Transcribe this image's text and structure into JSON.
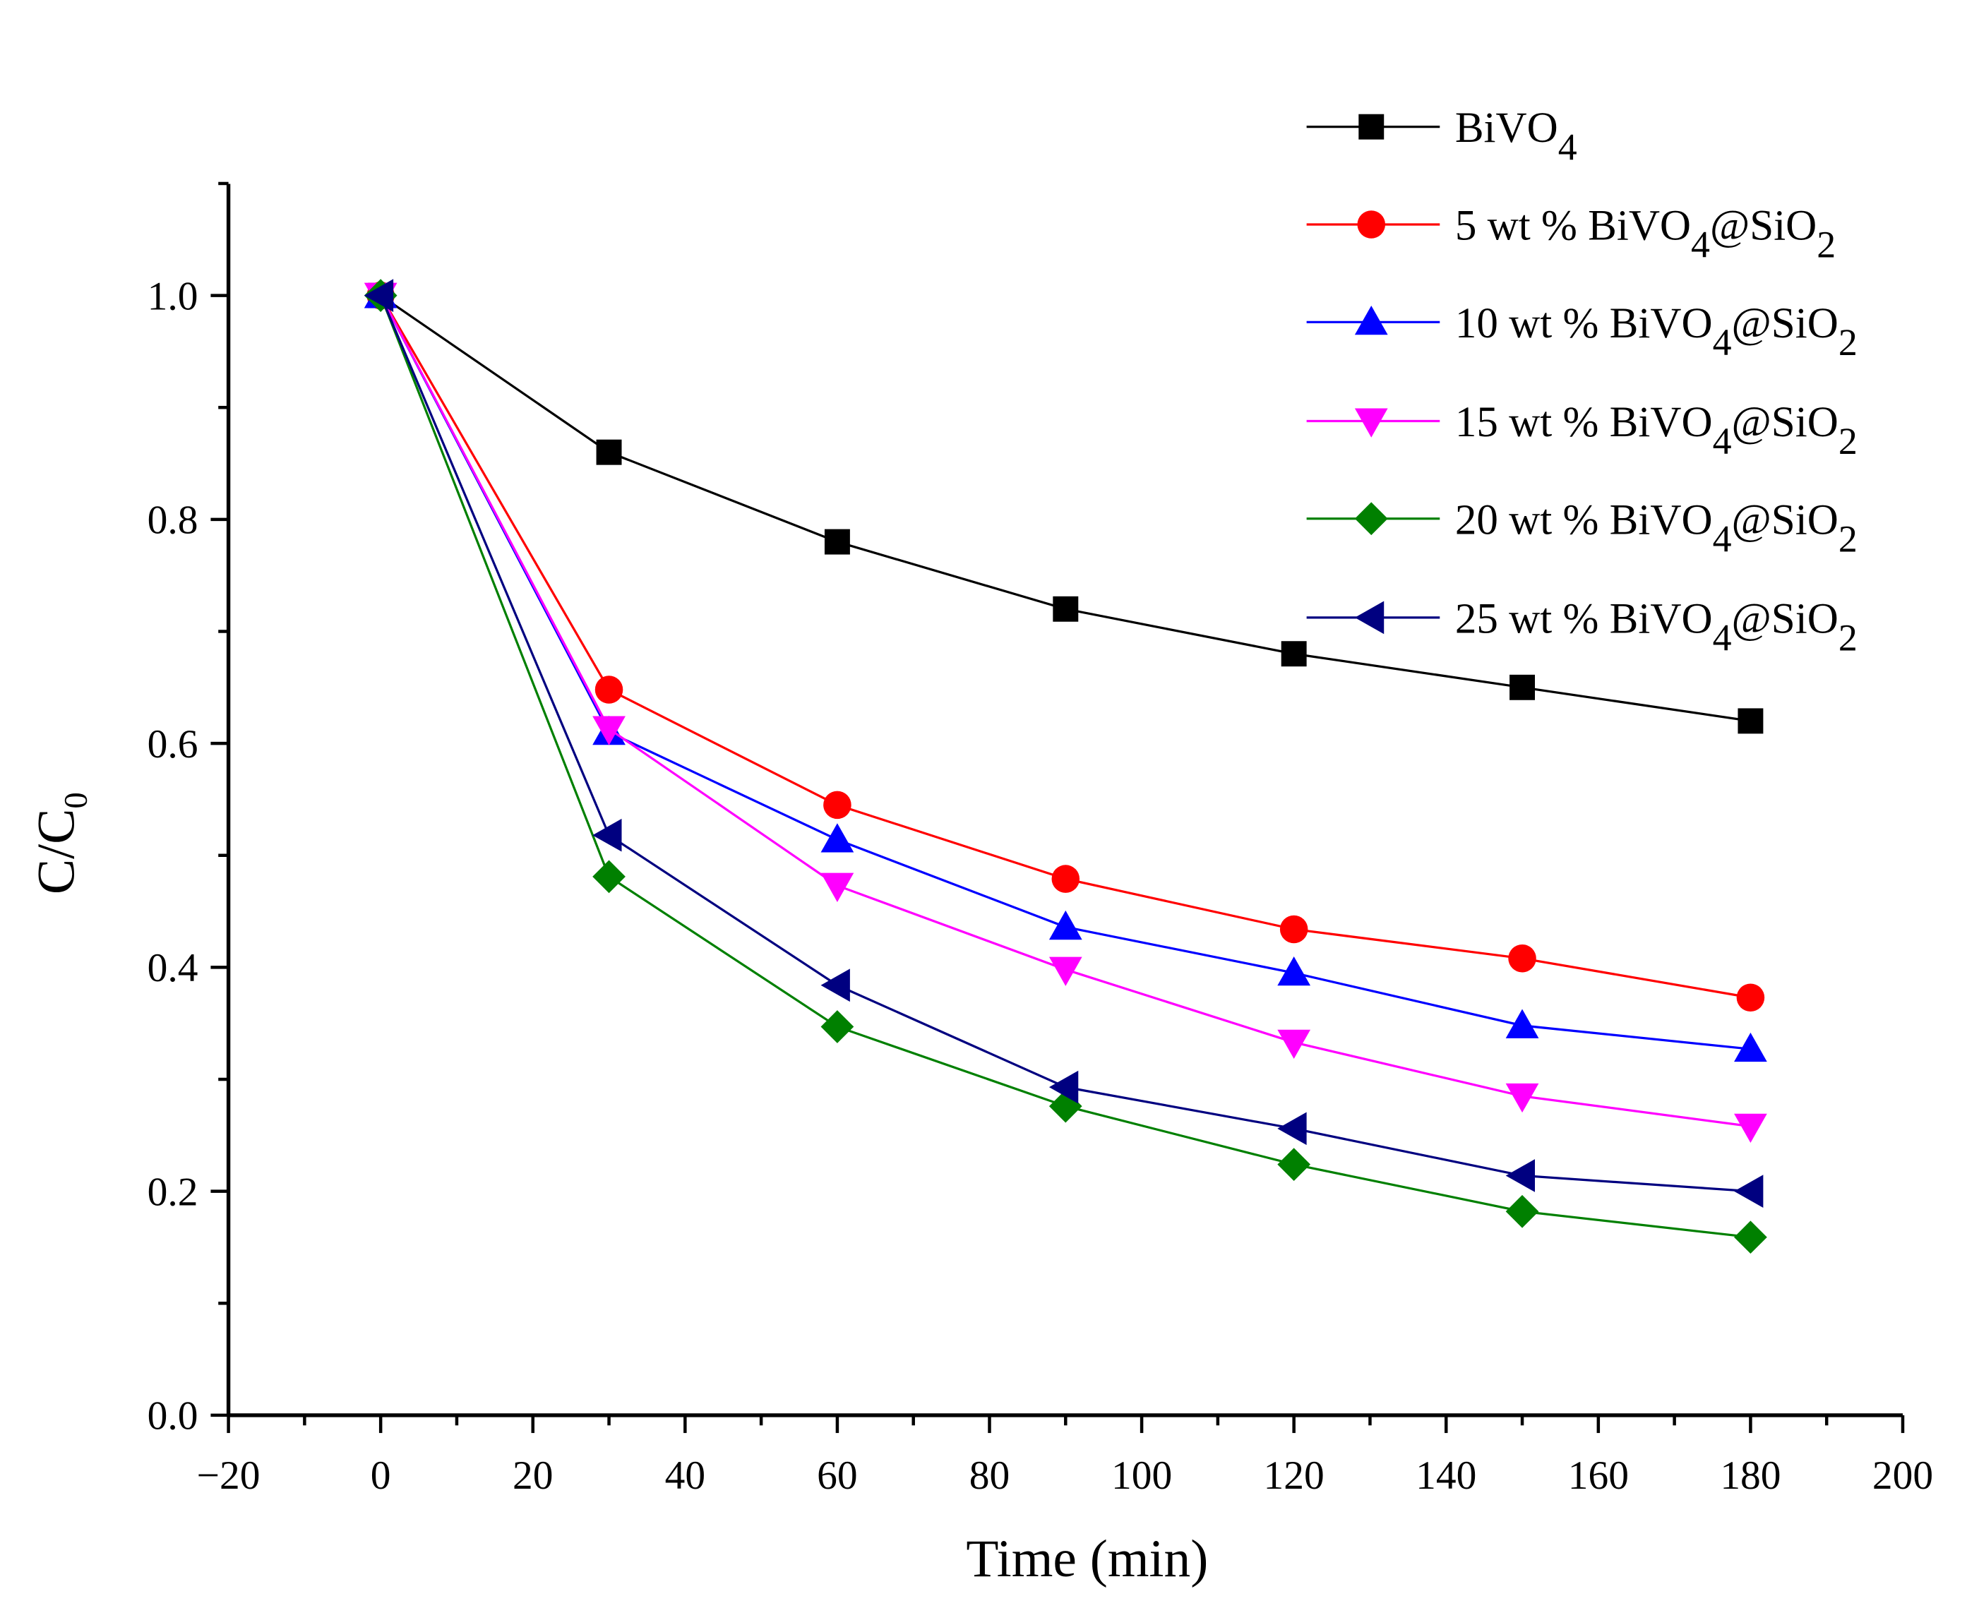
{
  "chart_data": {
    "type": "line",
    "title": "",
    "xlabel": "Time (min)",
    "ylabel": "C/C0",
    "ylabel_main": "C/C",
    "ylabel_sub": "0",
    "xlim": [
      -20,
      200
    ],
    "ylim": [
      0,
      1.1
    ],
    "xticks": [
      -20,
      0,
      20,
      40,
      60,
      80,
      100,
      120,
      140,
      160,
      180,
      200
    ],
    "xtick_labels": [
      "−20",
      "0",
      "20",
      "40",
      "60",
      "80",
      "100",
      "120",
      "140",
      "160",
      "180",
      "200"
    ],
    "yticks": [
      0.0,
      0.2,
      0.4,
      0.6,
      0.8,
      1.0
    ],
    "ytick_labels": [
      "0.0",
      "0.2",
      "0.4",
      "0.6",
      "0.8",
      "1.0"
    ],
    "grid": false,
    "legend_position": "top-right",
    "x": [
      0,
      30,
      60,
      90,
      120,
      150,
      180
    ],
    "series": [
      {
        "name": "BiVO4",
        "color": "#000000",
        "marker": "square",
        "values": [
          1.0,
          0.86,
          0.78,
          0.72,
          0.68,
          0.65,
          0.62
        ]
      },
      {
        "name": "5 wt % BiVO4@SiO2",
        "color": "#ff0000",
        "marker": "circle",
        "values": [
          1.0,
          0.648,
          0.545,
          0.479,
          0.434,
          0.408,
          0.373
        ]
      },
      {
        "name": "10 wt % BiVO4@SiO2",
        "color": "#0000ff",
        "marker": "triangle-up",
        "values": [
          1.0,
          0.61,
          0.514,
          0.436,
          0.395,
          0.348,
          0.327
        ]
      },
      {
        "name": "15 wt % BiVO4@SiO2",
        "color": "#ff00ff",
        "marker": "triangle-down",
        "values": [
          1.0,
          0.613,
          0.473,
          0.398,
          0.333,
          0.285,
          0.258
        ]
      },
      {
        "name": "20 wt % BiVO4@SiO2",
        "color": "#008000",
        "marker": "diamond",
        "values": [
          1.0,
          0.481,
          0.347,
          0.276,
          0.224,
          0.182,
          0.159
        ]
      },
      {
        "name": "25 wt % BiVO4@SiO2",
        "color": "#000080",
        "marker": "triangle-left",
        "values": [
          1.0,
          0.518,
          0.384,
          0.293,
          0.256,
          0.214,
          0.2
        ]
      }
    ]
  }
}
